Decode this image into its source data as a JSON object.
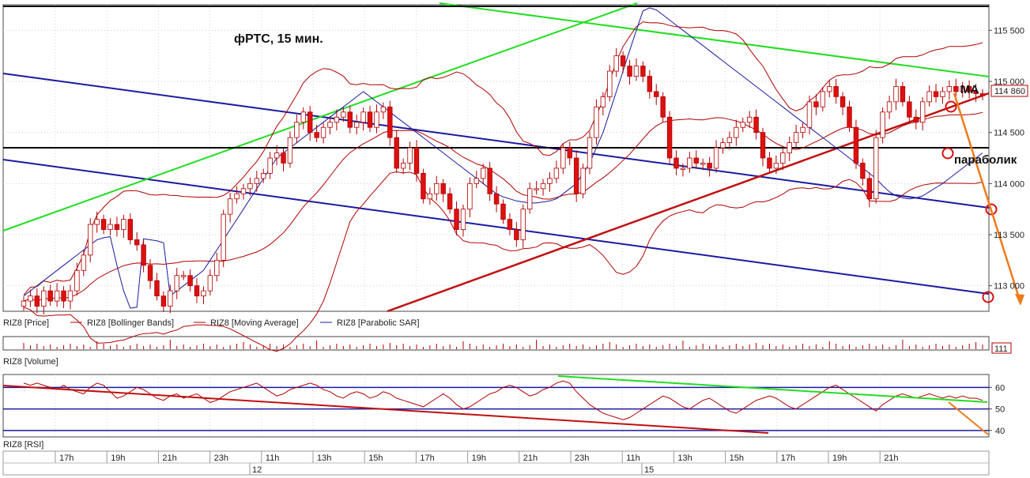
{
  "chart_data": {
    "type": "candlestick",
    "title": "фРТС, 15 мин.",
    "annotations": [
      "МА",
      "параболик"
    ],
    "last_price_label": "114 860",
    "price_axis": {
      "ylim": [
        112750,
        115750
      ],
      "ticks": [
        113000,
        113500,
        114000,
        114500,
        115000,
        115500
      ],
      "tick_labels": [
        "113 000",
        "113 500",
        "114 000",
        "114 500",
        "115 000",
        "115 500"
      ]
    },
    "legend": [
      {
        "name": "RIZ8 [Price]",
        "color": "#b00000",
        "style": "none"
      },
      {
        "name": "RIZ8 [Bollinger Bands]",
        "color": "#b00000",
        "style": "line"
      },
      {
        "name": "RIZ8 [Moving Average]",
        "color": "#b00000",
        "style": "line"
      },
      {
        "name": "RIZ8 [Parabolic SAR]",
        "color": "#1a1aa0",
        "style": "line"
      }
    ],
    "price_closes": [
      112850,
      112900,
      112800,
      112950,
      112850,
      112950,
      112850,
      112950,
      113150,
      113300,
      113600,
      113650,
      113550,
      113600,
      113550,
      113650,
      113450,
      113400,
      113200,
      113050,
      112900,
      112800,
      112950,
      113100,
      113100,
      113000,
      112900,
      112950,
      113100,
      113250,
      113700,
      113850,
      113900,
      113950,
      114000,
      114050,
      114100,
      114250,
      114300,
      114200,
      114450,
      114600,
      114700,
      114500,
      114450,
      114550,
      114600,
      114650,
      114700,
      114550,
      114600,
      114700,
      114550,
      114700,
      114750,
      114450,
      114150,
      114200,
      114350,
      114100,
      113850,
      113900,
      114000,
      113900,
      113750,
      113550,
      113750,
      114000,
      114050,
      114150,
      113900,
      113800,
      113650,
      113550,
      113450,
      113750,
      113950,
      113950,
      114000,
      114050,
      114150,
      114350,
      114250,
      113900,
      114150,
      114450,
      114750,
      114850,
      115100,
      115250,
      115150,
      115050,
      115150,
      115050,
      114900,
      114850,
      114650,
      114250,
      114150,
      114150,
      114250,
      114200,
      114200,
      114150,
      114350,
      114400,
      114450,
      114550,
      114600,
      114650,
      114500,
      114250,
      114150,
      114200,
      114300,
      114400,
      114500,
      114550,
      114800,
      114750,
      114900,
      114950,
      114850,
      114750,
      114550,
      114200,
      114050,
      113850,
      114450,
      114700,
      114800,
      114950,
      114800,
      114650,
      114600,
      114800,
      114900,
      114850,
      114900,
      114950,
      114900,
      114950,
      114900,
      114880,
      114860
    ],
    "parabolic_sar": [
      112900,
      112950,
      113000,
      113050,
      113100,
      113150,
      113200,
      113250,
      113300,
      113350,
      113400,
      113450,
      113470,
      113480,
      113200,
      112950,
      112780,
      112790,
      113460,
      113450,
      113440,
      113420,
      112900,
      112950,
      113000,
      113050,
      113100,
      113150,
      113250,
      113350,
      113450,
      113550,
      113650,
      113750,
      113850,
      113950,
      114050,
      114150,
      114250,
      114300,
      114350,
      114400,
      114450,
      114500,
      114550,
      114600,
      114650,
      114700,
      114750,
      114800,
      114850,
      114900,
      114850,
      114800,
      114750,
      114700,
      114650,
      114600,
      114550,
      114500,
      114450,
      114400,
      114350,
      114300,
      114250,
      114200,
      114150,
      114100,
      114050,
      114000,
      113950,
      113900,
      113870,
      113850,
      113830,
      113820,
      113810,
      113810,
      113820,
      113830,
      113850,
      113900,
      113950,
      114000,
      114100,
      114200,
      114350,
      114500,
      114700,
      114900,
      115100,
      115300,
      115500,
      115690,
      115720,
      115700,
      115650,
      115600,
      115550,
      115500,
      115450,
      115400,
      115350,
      115300,
      115250,
      115200,
      115150,
      115100,
      115050,
      115000,
      114950,
      114900,
      114850,
      114800,
      114750,
      114700,
      114650,
      114600,
      114550,
      114500,
      114450,
      114400,
      114350,
      114300,
      114250,
      114200,
      114150,
      114100,
      114050,
      113980,
      113920,
      113880,
      113860,
      113850,
      113860,
      113880,
      113920,
      113960,
      114000,
      114050,
      114100,
      114150,
      114200,
      114250,
      114300
    ],
    "volume": {
      "label": "RIZ8 [Volume]",
      "last_value_label": "111"
    },
    "rsi": {
      "label": "RIZ8 [RSI]",
      "ylim": [
        37,
        66
      ],
      "ticks": [
        40,
        50,
        60
      ],
      "levels": [
        40,
        50,
        60
      ],
      "values": [
        62,
        61,
        62,
        61,
        60,
        59,
        61,
        59,
        58,
        57,
        60,
        62,
        61,
        58,
        55,
        56,
        58,
        60,
        59,
        57,
        55,
        54,
        56,
        57,
        55,
        56,
        57,
        55,
        53,
        54,
        56,
        58,
        59,
        60,
        61,
        62,
        60,
        58,
        56,
        57,
        59,
        60,
        61,
        62,
        61,
        59,
        58,
        56,
        55,
        57,
        58,
        57,
        55,
        56,
        58,
        57,
        55,
        54,
        53,
        52,
        51,
        53,
        55,
        57,
        55,
        52,
        50,
        51,
        53,
        55,
        57,
        58,
        60,
        61,
        60,
        58,
        56,
        57,
        59,
        60,
        62,
        63,
        62,
        58,
        55,
        52,
        50,
        48,
        47,
        46,
        45,
        46,
        48,
        50,
        52,
        54,
        56,
        55,
        53,
        51,
        50,
        52,
        54,
        55,
        53,
        51,
        49,
        48,
        50,
        52,
        54,
        55,
        56,
        55,
        53,
        51,
        50,
        52,
        54,
        56,
        58,
        60,
        61,
        59,
        57,
        55,
        53,
        51,
        49,
        52,
        54,
        56,
        57,
        56,
        55,
        56,
        57,
        56,
        55,
        56,
        55,
        56,
        55,
        55,
        54
      ]
    },
    "time_axis": {
      "hour_labels": [
        "17h",
        "19h",
        "21h",
        "23h",
        "11h",
        "13h",
        "15h",
        "17h",
        "19h",
        "21h",
        "23h",
        "11h",
        "13h",
        "15h",
        "17h",
        "19h",
        "21h"
      ],
      "date_labels": [
        "12",
        "15"
      ]
    }
  }
}
